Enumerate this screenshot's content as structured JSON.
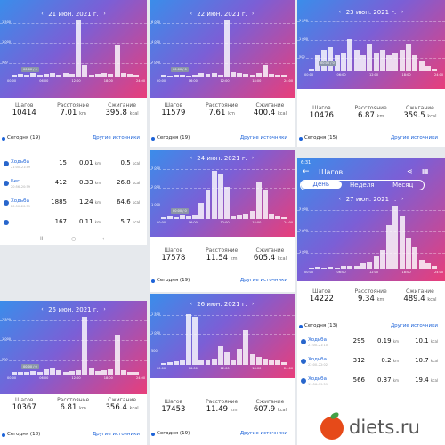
{
  "common": {
    "steps_label": "Шагов",
    "distance_label": "Расстояние",
    "calories_label": "Сжигание",
    "km_unit": "km",
    "kcal_unit": "kcal",
    "other_sources": "Другие источники",
    "prev_arrow": "‹",
    "next_arrow": "›"
  },
  "panels": [
    {
      "id": "p1",
      "date": "21 июн. 2021 г.",
      "steps": "10414",
      "distance": "7.01",
      "calories": "395.8",
      "today": "Сегодня (19)",
      "y_labels": [
        "1 500",
        "1 000",
        "500"
      ],
      "x_labels": [
        "00:00",
        "06:00",
        "12:00",
        "18:00",
        "24:00"
      ],
      "tooltip": "00:00 / 0",
      "bars": [
        0.05,
        0.06,
        0.04,
        0.07,
        0.04,
        0.06,
        0.08,
        0.05,
        0.07,
        0.06,
        1.0,
        0.22,
        0.05,
        0.06,
        0.08,
        0.06,
        0.55,
        0.07,
        0.06,
        0.05
      ]
    },
    {
      "id": "p2",
      "date": "22 июн. 2021 г.",
      "steps": "11579",
      "distance": "7.61",
      "calories": "400.4",
      "today": "Сегодня (19)",
      "y_labels": [
        "6 000",
        "4 000",
        "2 000"
      ],
      "x_labels": [
        "00:00",
        "06:00",
        "12:00",
        "18:00",
        "24:00"
      ],
      "tooltip": "00:00 / 0",
      "bars": [
        0.04,
        0.03,
        0.05,
        0.04,
        0.03,
        0.05,
        0.07,
        0.06,
        0.08,
        0.05,
        1.0,
        0.1,
        0.08,
        0.06,
        0.05,
        0.07,
        0.22,
        0.06,
        0.05,
        0.04
      ]
    },
    {
      "id": "p3",
      "date": "23 июн. 2021 г.",
      "steps": "10476",
      "distance": "6.87",
      "calories": "359.5",
      "today": "Сегодня (15)",
      "y_labels": [
        "1 500",
        "1 000",
        "500"
      ],
      "x_labels": [
        "00:00",
        "06:00",
        "12:00",
        "18:00",
        "24:00"
      ],
      "tooltip": "00:00 / 0",
      "bars": [
        0.05,
        0.3,
        0.4,
        0.45,
        0.3,
        0.35,
        0.6,
        0.4,
        0.3,
        0.5,
        0.35,
        0.4,
        0.3,
        0.35,
        0.4,
        0.5,
        0.3,
        0.2,
        0.1,
        0.05
      ]
    },
    {
      "id": "p4",
      "date": "24 июн. 2021 г.",
      "steps": "17578",
      "distance": "11.54",
      "calories": "605.4",
      "today": "Сегодня (19)",
      "y_labels": [
        "3 000",
        "2 000",
        "1 000"
      ],
      "x_labels": [
        "00:00",
        "06:00",
        "12:00",
        "18:00",
        "24:00"
      ],
      "tooltip": "00:00 / 0",
      "bars": [
        0.04,
        0.05,
        0.04,
        0.06,
        0.05,
        0.07,
        0.3,
        0.55,
        0.9,
        0.85,
        0.6,
        0.05,
        0.06,
        0.1,
        0.15,
        0.7,
        0.55,
        0.08,
        0.05,
        0.04
      ]
    },
    {
      "id": "p5",
      "date": "25 июн. 2021 г.",
      "steps": "10367",
      "distance": "6.81",
      "calories": "356.4",
      "today": "Сегодня (18)",
      "y_labels": [
        "1 500",
        "1 000",
        "500"
      ],
      "x_labels": [
        "00:00",
        "06:00",
        "12:00",
        "18:00",
        "24:00"
      ],
      "tooltip": "00:00 / 0",
      "bars": [
        0.04,
        0.05,
        0.04,
        0.06,
        0.05,
        0.1,
        0.12,
        0.08,
        0.05,
        0.06,
        0.08,
        1.0,
        0.12,
        0.06,
        0.08,
        0.09,
        0.7,
        0.07,
        0.05,
        0.04
      ]
    },
    {
      "id": "p6",
      "date": "26 июн. 2021 г.",
      "steps": "17453",
      "distance": "11.49",
      "calories": "607.9",
      "today": "Сегодня (19)",
      "y_labels": [
        "1 500",
        "1 000",
        "500"
      ],
      "x_labels": [
        "00:00",
        "06:00",
        "12:00",
        "18:00",
        "24:00"
      ],
      "tooltip": "",
      "bars": [
        0.04,
        0.05,
        0.06,
        0.1,
        0.95,
        0.9,
        0.08,
        0.1,
        0.12,
        0.35,
        0.25,
        0.1,
        0.3,
        0.65,
        0.2,
        0.15,
        0.12,
        0.1,
        0.08,
        0.05
      ]
    },
    {
      "id": "p7",
      "date": "27 июн. 2021 г.",
      "steps": "14222",
      "distance": "9.34",
      "calories": "489.4",
      "today": "Сегодня (13)",
      "y_labels": [
        "3 000",
        "2 000",
        "1 000"
      ],
      "x_labels": [
        "00:00",
        "06:00",
        "12:00",
        "18:00",
        "24:00"
      ],
      "tooltip": "",
      "bars": [
        0.02,
        0.03,
        0.02,
        0.03,
        0.02,
        0.04,
        0.05,
        0.04,
        0.08,
        0.12,
        0.2,
        0.3,
        0.7,
        1.0,
        0.85,
        0.5,
        0.35,
        0.15,
        0.08,
        0.04
      ]
    }
  ],
  "p1_list": [
    {
      "name": "Ходьба",
      "time": "21:00–21:49",
      "steps": "15",
      "dist": "0.01",
      "cal": "0.5"
    },
    {
      "name": "Бег",
      "time": "20:56–20:59",
      "steps": "412",
      "dist": "0.33",
      "cal": "26.8"
    },
    {
      "name": "Ходьба",
      "time": "20:50–20:59",
      "steps": "1885",
      "dist": "1.24",
      "cal": "64.6"
    },
    {
      "name": "",
      "time": "",
      "steps": "167",
      "dist": "0.11",
      "cal": "5.7"
    }
  ],
  "p7_header": {
    "status_time": "6:31",
    "title": "Шагов",
    "tabs": [
      "День",
      "Неделя",
      "Месяц"
    ]
  },
  "p7_list": [
    {
      "name": "Ходьба",
      "time": "21:00–21:10",
      "steps": "295",
      "dist": "0.19",
      "cal": "10.1"
    },
    {
      "name": "Ходьба",
      "time": "22:00–22:02",
      "steps": "312",
      "dist": "0.2",
      "cal": "10.7"
    },
    {
      "name": "Ходьба",
      "time": "19:56–19:59",
      "steps": "566",
      "dist": "0.37",
      "cal": "19.4"
    }
  ],
  "nav_buttons": [
    "III",
    "○",
    "‹"
  ],
  "watermark": {
    "text": "diets.ru"
  }
}
